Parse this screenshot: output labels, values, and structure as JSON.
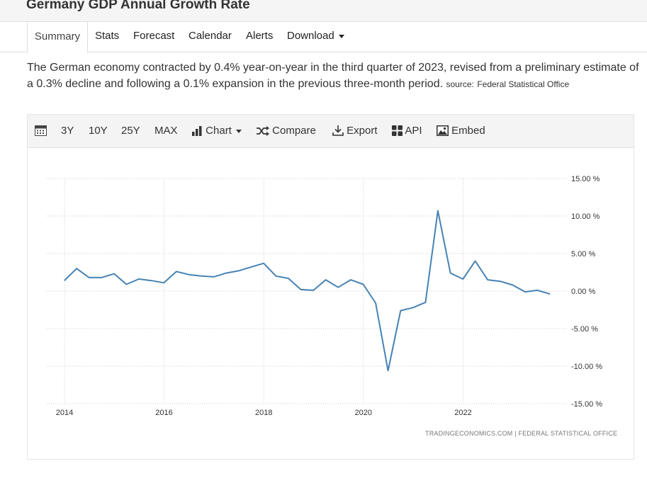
{
  "page": {
    "title": "Germany GDP Annual Growth Rate"
  },
  "tabs": [
    {
      "label": "Summary",
      "active": true
    },
    {
      "label": "Stats"
    },
    {
      "label": "Forecast"
    },
    {
      "label": "Calendar"
    },
    {
      "label": "Alerts"
    },
    {
      "label": "Download"
    }
  ],
  "description": {
    "text": "The German economy contracted by 0.4% year-on-year in the third quarter of 2023, revised from a preliminary estimate of a 0.3% decline and following a 0.1% expansion in the previous three-month period.",
    "source_label": "source:",
    "source_name": "Federal Statistical Office"
  },
  "toolbar": {
    "range_3y": "3Y",
    "range_10y": "10Y",
    "range_25y": "25Y",
    "range_max": "MAX",
    "chart": "Chart",
    "compare": "Compare",
    "export": "Export",
    "api": "API",
    "embed": "Embed"
  },
  "attribution": "TRADINGECONOMICS.COM  |  FEDERAL STATISTICAL OFFICE",
  "colors": {
    "line": "#4682b4",
    "grid": "#cccccc",
    "text": "#333333"
  },
  "chart_data": {
    "type": "line",
    "title": "",
    "xlabel": "",
    "ylabel": "",
    "x_ticks": [
      "2014",
      "2016",
      "2018",
      "2020",
      "2022"
    ],
    "y_ticks": [
      "15.00 %",
      "10.00 %",
      "5.00 %",
      "0.00 %",
      "-5.00 %",
      "-10.00 %",
      "-15.00 %"
    ],
    "ylim": [
      -15,
      15
    ],
    "xlim": [
      "2014-01-01",
      "2024-02-01"
    ],
    "y_axis_position": "right",
    "grid": true,
    "series": [
      {
        "x": [
          "2013-12-31",
          "2014-03-31",
          "2014-06-30",
          "2014-09-30",
          "2014-12-31",
          "2015-03-31",
          "2015-06-30",
          "2015-09-30",
          "2015-12-31",
          "2016-03-31",
          "2016-06-30",
          "2016-09-30",
          "2016-12-31",
          "2017-03-31",
          "2017-06-30",
          "2017-09-30",
          "2017-12-31",
          "2018-03-31",
          "2018-06-30",
          "2018-09-30",
          "2018-12-31",
          "2019-03-31",
          "2019-06-30",
          "2019-09-30",
          "2019-12-31",
          "2020-03-31",
          "2020-06-30",
          "2020-09-30",
          "2020-12-31",
          "2021-03-31",
          "2021-06-30",
          "2021-09-30",
          "2021-12-31",
          "2022-03-31",
          "2022-06-30",
          "2022-09-30",
          "2022-12-31",
          "2023-03-31",
          "2023-06-30",
          "2023-09-30"
        ],
        "values": [
          1.4,
          3.0,
          1.8,
          1.8,
          2.3,
          0.9,
          1.6,
          1.4,
          1.1,
          2.6,
          2.2,
          2.0,
          1.9,
          2.4,
          2.7,
          3.2,
          3.7,
          2.0,
          1.7,
          0.2,
          0.1,
          1.5,
          0.5,
          1.5,
          0.9,
          -1.6,
          -10.6,
          -2.6,
          -2.2,
          -1.5,
          10.7,
          2.4,
          1.6,
          4.0,
          1.5,
          1.3,
          0.8,
          -0.1,
          0.1,
          -0.4
        ]
      }
    ]
  }
}
